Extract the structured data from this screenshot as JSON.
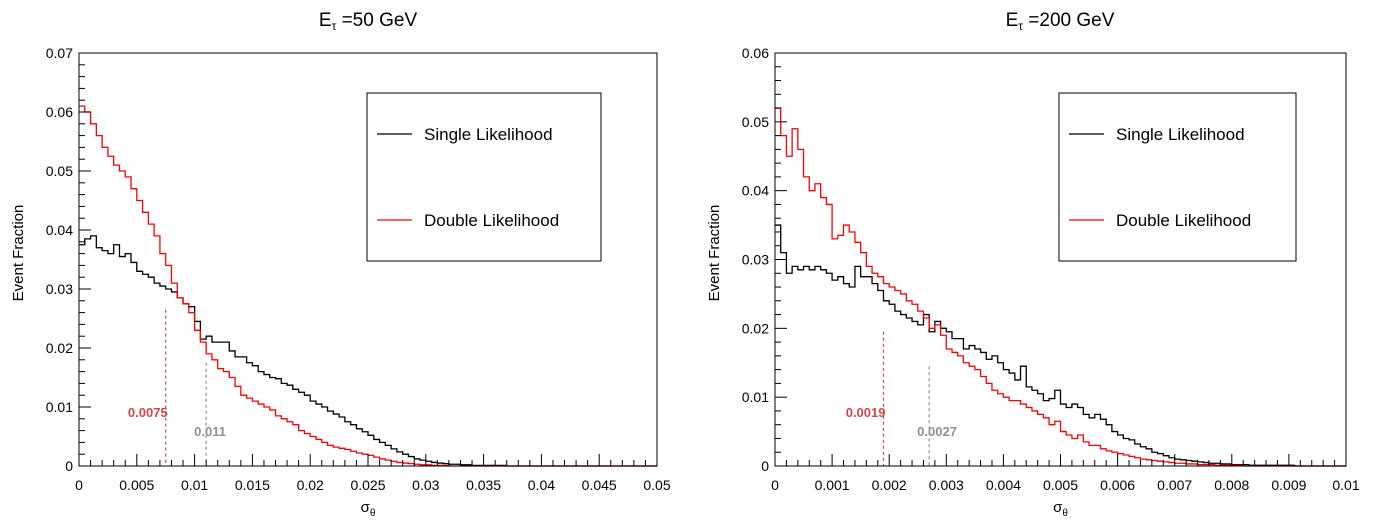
{
  "chart_data": [
    {
      "type": "line",
      "title_main": "E",
      "title_sub": "τ",
      "title_rest": " =50 GeV",
      "xlabel_main": "σ",
      "xlabel_sub": "θ",
      "ylabel": "Event Fraction",
      "xlim": [
        0,
        0.05
      ],
      "ylim": [
        0,
        0.07
      ],
      "xticks": [
        0,
        0.005,
        0.01,
        0.015,
        0.02,
        0.025,
        0.03,
        0.035,
        0.04,
        0.045,
        0.05
      ],
      "xtick_labels": [
        "0",
        "0.005",
        "0.01",
        "0.015",
        "0.02",
        "0.025",
        "0.03",
        "0.035",
        "0.04",
        "0.045",
        "0.05"
      ],
      "yticks": [
        0,
        0.01,
        0.02,
        0.03,
        0.04,
        0.05,
        0.06,
        0.07
      ],
      "ytick_labels": [
        "0",
        "0.01",
        "0.02",
        "0.03",
        "0.04",
        "0.05",
        "0.06",
        "0.07"
      ],
      "grid": false,
      "legend_position": "top-right",
      "series": [
        {
          "name": "Single Likelihood",
          "color": "#000000",
          "bin_width": 0.0005,
          "values": [
            0.0375,
            0.0385,
            0.039,
            0.037,
            0.0365,
            0.036,
            0.0375,
            0.0355,
            0.036,
            0.0345,
            0.033,
            0.0325,
            0.032,
            0.031,
            0.0305,
            0.03,
            0.0295,
            0.0285,
            0.0275,
            0.027,
            0.0245,
            0.0215,
            0.022,
            0.021,
            0.021,
            0.021,
            0.0195,
            0.0185,
            0.0185,
            0.0175,
            0.017,
            0.016,
            0.0155,
            0.015,
            0.0148,
            0.014,
            0.0137,
            0.013,
            0.0125,
            0.012,
            0.011,
            0.0105,
            0.01,
            0.0093,
            0.0088,
            0.0083,
            0.0075,
            0.007,
            0.0063,
            0.0058,
            0.0052,
            0.0045,
            0.004,
            0.0035,
            0.0029,
            0.0024,
            0.002,
            0.0016,
            0.0012,
            0.001,
            0.0008,
            0.0006,
            0.0005,
            0.0004,
            0.0003,
            0.0003,
            0.0002,
            0.0002,
            0.0001,
            0.0001,
            0.0001,
            0.0001,
            0.0001,
            0.0001,
            0,
            0,
            0,
            0,
            0,
            0,
            0,
            0,
            0,
            0,
            0,
            0,
            0,
            0,
            0,
            0,
            0,
            0,
            0,
            0,
            0,
            0,
            0,
            0,
            0,
            0
          ]
        },
        {
          "name": "Double Likelihood",
          "color": "#ff0000",
          "bin_width": 0.0005,
          "values": [
            0.061,
            0.06,
            0.058,
            0.056,
            0.054,
            0.0525,
            0.051,
            0.05,
            0.049,
            0.047,
            0.045,
            0.043,
            0.041,
            0.039,
            0.036,
            0.034,
            0.031,
            0.0285,
            0.0275,
            0.026,
            0.023,
            0.021,
            0.019,
            0.018,
            0.0165,
            0.016,
            0.015,
            0.0135,
            0.012,
            0.0115,
            0.011,
            0.0105,
            0.01,
            0.0095,
            0.0085,
            0.008,
            0.0075,
            0.007,
            0.006,
            0.0055,
            0.005,
            0.0045,
            0.004,
            0.0035,
            0.0032,
            0.003,
            0.0028,
            0.0025,
            0.0022,
            0.002,
            0.0018,
            0.0015,
            0.0012,
            0.001,
            0.0008,
            0.0006,
            0.0005,
            0.0004,
            0.0003,
            0.0002,
            0.0002,
            0.0001,
            0.0001,
            0.0001,
            0,
            0,
            0,
            0,
            0,
            0,
            0,
            0,
            0,
            0,
            0,
            0,
            0,
            0,
            0,
            0,
            0,
            0,
            0,
            0,
            0,
            0,
            0,
            0,
            0,
            0,
            0,
            0,
            0,
            0,
            0,
            0,
            0,
            0,
            0,
            0
          ]
        }
      ],
      "markers": [
        {
          "x": 0.0075,
          "y": 0.0265,
          "label": "0.0075",
          "color": "#d04848",
          "label_side": "left"
        },
        {
          "x": 0.011,
          "y": 0.0175,
          "label": "0.011",
          "color": "#909090",
          "label_side": "right"
        }
      ],
      "legend_labels": [
        "Single Likelihood",
        "Double Likelihood"
      ]
    },
    {
      "type": "line",
      "title_main": "E",
      "title_sub": "τ",
      "title_rest": " =200 GeV",
      "xlabel_main": "σ",
      "xlabel_sub": "θ",
      "ylabel": "Event Fraction",
      "xlim": [
        0,
        0.01
      ],
      "ylim": [
        0,
        0.06
      ],
      "xticks": [
        0,
        0.001,
        0.002,
        0.003,
        0.004,
        0.005,
        0.006,
        0.007,
        0.008,
        0.009,
        0.01
      ],
      "xtick_labels": [
        "0",
        "0.001",
        "0.002",
        "0.003",
        "0.004",
        "0.005",
        "0.006",
        "0.007",
        "0.008",
        "0.009",
        "0.01"
      ],
      "yticks": [
        0,
        0.01,
        0.02,
        0.03,
        0.04,
        0.05,
        0.06
      ],
      "ytick_labels": [
        "0",
        "0.01",
        "0.02",
        "0.03",
        "0.04",
        "0.05",
        "0.06"
      ],
      "grid": false,
      "legend_position": "top-right",
      "series": [
        {
          "name": "Single Likelihood",
          "color": "#000000",
          "bin_width": 0.0001,
          "values": [
            0.035,
            0.031,
            0.028,
            0.029,
            0.0285,
            0.029,
            0.0285,
            0.029,
            0.0285,
            0.028,
            0.027,
            0.0275,
            0.0265,
            0.026,
            0.029,
            0.0275,
            0.0275,
            0.0265,
            0.0255,
            0.024,
            0.0235,
            0.0225,
            0.022,
            0.0215,
            0.021,
            0.0205,
            0.022,
            0.0195,
            0.021,
            0.02,
            0.0195,
            0.0185,
            0.0185,
            0.017,
            0.0175,
            0.017,
            0.0165,
            0.0155,
            0.016,
            0.015,
            0.014,
            0.0135,
            0.0125,
            0.0145,
            0.0115,
            0.011,
            0.0105,
            0.0095,
            0.0098,
            0.011,
            0.009,
            0.0085,
            0.009,
            0.0085,
            0.0075,
            0.007,
            0.0075,
            0.0068,
            0.006,
            0.005,
            0.0045,
            0.004,
            0.0038,
            0.0032,
            0.0028,
            0.0025,
            0.002,
            0.0018,
            0.0015,
            0.0012,
            0.001,
            0.0009,
            0.0008,
            0.0007,
            0.0006,
            0.0005,
            0.0004,
            0.0004,
            0.0003,
            0.0003,
            0.0002,
            0.0002,
            0.0002,
            0.0001,
            0.0001,
            0.0001,
            0.0001,
            0.0001,
            0.0001,
            0.0001,
            0.0001,
            0,
            0,
            0,
            0,
            0,
            0,
            0,
            0,
            0
          ]
        },
        {
          "name": "Double Likelihood",
          "color": "#ff0000",
          "bin_width": 0.0001,
          "values": [
            0.052,
            0.048,
            0.045,
            0.049,
            0.046,
            0.042,
            0.04,
            0.041,
            0.039,
            0.038,
            0.033,
            0.0335,
            0.035,
            0.034,
            0.0325,
            0.031,
            0.029,
            0.028,
            0.0275,
            0.0265,
            0.026,
            0.0255,
            0.025,
            0.024,
            0.0235,
            0.0225,
            0.0215,
            0.02,
            0.0205,
            0.019,
            0.017,
            0.0165,
            0.016,
            0.015,
            0.0145,
            0.014,
            0.013,
            0.012,
            0.011,
            0.0105,
            0.01,
            0.0095,
            0.0095,
            0.009,
            0.0085,
            0.008,
            0.0075,
            0.007,
            0.006,
            0.0065,
            0.005,
            0.0045,
            0.004,
            0.0045,
            0.0035,
            0.003,
            0.003,
            0.0025,
            0.0022,
            0.002,
            0.0018,
            0.0016,
            0.0014,
            0.0012,
            0.001,
            0.0009,
            0.0008,
            0.0007,
            0.0006,
            0.0005,
            0.0004,
            0.0004,
            0.0003,
            0.0003,
            0.0002,
            0.0002,
            0.0002,
            0.0001,
            0.0001,
            0.0001,
            0.0001,
            0.0001,
            0,
            0,
            0,
            0,
            0,
            0,
            0,
            0,
            0,
            0,
            0,
            0,
            0,
            0,
            0,
            0,
            0,
            0
          ]
        }
      ],
      "markers": [
        {
          "x": 0.0019,
          "y": 0.0195,
          "label": "0.0019",
          "color": "#d04848",
          "label_side": "left"
        },
        {
          "x": 0.0027,
          "y": 0.0145,
          "label": "0.0027",
          "color": "#909090",
          "label_side": "right"
        }
      ],
      "legend_labels": [
        "Single Likelihood",
        "Double Likelihood"
      ]
    }
  ]
}
